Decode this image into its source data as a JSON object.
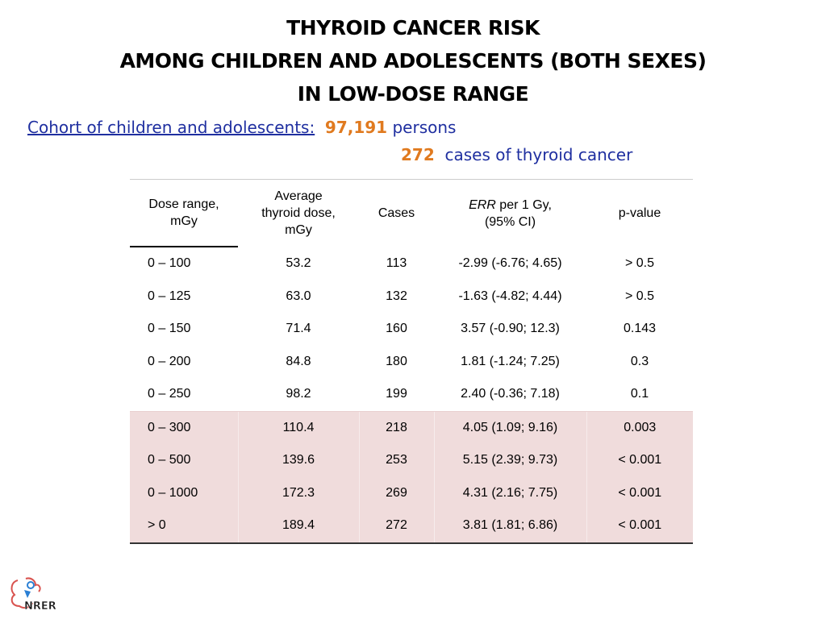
{
  "title": {
    "line1": "THYROID CANCER RISK",
    "line2": "AMONG CHILDREN AND ADOLESCENTS (BOTH SEXES)",
    "line3": "IN LOW-DOSE RANGE"
  },
  "cohort": {
    "label": "Cohort of children and adolescents:",
    "persons_count": "97,191",
    "persons_label": "persons",
    "cases_count": "272",
    "cases_label": "cases of thyroid cancer"
  },
  "table": {
    "headers": {
      "dose_range_line1": "Dose range,",
      "dose_range_line2": "mGy",
      "average_line1": "Average",
      "average_line2": "thyroid dose,",
      "average_line3": "mGy",
      "cases": "Cases",
      "err_italic": "ERR",
      "err_rest": " per 1 Gy,",
      "err_line2": "(95% CI)",
      "pvalue": "p-value"
    },
    "rows": [
      {
        "dose_range": "0 – 100",
        "avg_dose": "53.2",
        "cases": "113",
        "err": "-2.99 (-6.76; 4.65)",
        "p": "> 0.5"
      },
      {
        "dose_range": "0 – 125",
        "avg_dose": "63.0",
        "cases": "132",
        "err": "-1.63 (-4.82; 4.44)",
        "p": "> 0.5"
      },
      {
        "dose_range": "0 – 150",
        "avg_dose": "71.4",
        "cases": "160",
        "err": "3.57 (-0.90; 12.3)",
        "p": "0.143"
      },
      {
        "dose_range": "0 – 200",
        "avg_dose": "84.8",
        "cases": "180",
        "err": "1.81 (-1.24; 7.25)",
        "p": "0.3"
      },
      {
        "dose_range": "0 – 250",
        "avg_dose": "98.2",
        "cases": "199",
        "err": "2.40 (-0.36; 7.18)",
        "p": "0.1"
      },
      {
        "dose_range": "0 – 300",
        "avg_dose": "110.4",
        "cases": "218",
        "err": "4.05 (1.09; 9.16)",
        "p": "0.003"
      },
      {
        "dose_range": "0 – 500",
        "avg_dose": "139.6",
        "cases": "253",
        "err": "5.15 (2.39; 9.73)",
        "p": "< 0.001"
      },
      {
        "dose_range": "0 – 1000",
        "avg_dose": "172.3",
        "cases": "269",
        "err": "4.31 (2.16; 7.75)",
        "p": "< 0.001"
      },
      {
        "dose_range": "> 0",
        "avg_dose": "189.4",
        "cases": "272",
        "err": "3.81 (1.81; 6.86)",
        "p": "< 0.001"
      }
    ]
  },
  "colors": {
    "highlight_rows": "#f0dcdc",
    "cohort_blue": "#1f2fa0",
    "number_orange": "#e07a1f"
  },
  "logo": {
    "text": "NRER",
    "icon": "nrer-logo-icon"
  }
}
